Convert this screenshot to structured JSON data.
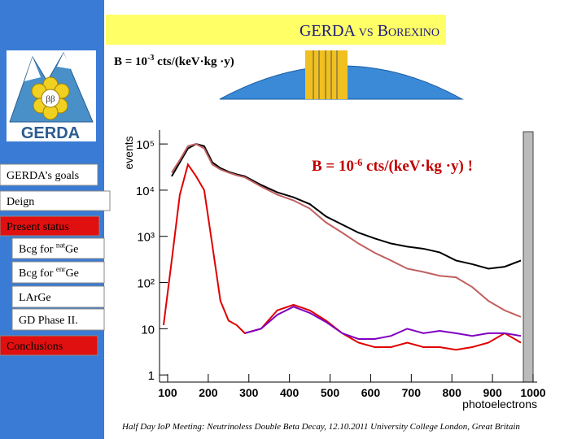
{
  "header": {
    "title": "GERDA vs Borexino"
  },
  "logo": {
    "symbol": "ββ",
    "text": "GERDA"
  },
  "sidebar": {
    "items": [
      {
        "label": "GERDA’s goals"
      },
      {
        "label": "Deign"
      },
      {
        "label": "Present status"
      },
      {
        "label": "Bcg for ",
        "sup": "nat",
        "label_end": "Ge"
      },
      {
        "label": "Bcg for ",
        "sup": "enr",
        "label_end": "Ge"
      },
      {
        "label": "LArGe"
      },
      {
        "label": "GD Phase II."
      },
      {
        "label": "Conclusions"
      }
    ]
  },
  "top_note": {
    "label": "B = 10",
    "sup": "-3",
    "label_end": " cts/(keV·kg ·y)"
  },
  "footer": {
    "text": "Half Day IoP Meeting: Neutrinoless Double Beta Decay, 12.10.2011 University College London, Great Britain"
  },
  "chart_data": {
    "type": "line",
    "annotation": {
      "label": "B = 10",
      "sup": "-6",
      "label_end": " cts/(keV·kg ·y) !"
    },
    "x_label": "photoelectrons",
    "y_label": "events",
    "log_y": true,
    "xlim": [
      80,
      1010
    ],
    "ylim": [
      0.7,
      200000
    ],
    "xticks": [
      100,
      200,
      300,
      400,
      500,
      600,
      700,
      800,
      900,
      1000
    ],
    "yticks": [
      1,
      10,
      {
        "value": 100,
        "label": "10²"
      },
      {
        "value": 1000,
        "label": "10³"
      },
      {
        "value": 10000,
        "label": "10⁴"
      },
      {
        "value": 100000,
        "label": "10⁵"
      }
    ],
    "x": [
      90,
      110,
      130,
      150,
      170,
      190,
      210,
      230,
      250,
      270,
      290,
      330,
      370,
      410,
      450,
      490,
      530,
      570,
      610,
      650,
      690,
      730,
      770,
      810,
      850,
      890,
      930,
      970,
      1000
    ],
    "series": [
      {
        "color": "#000000",
        "values": [
          null,
          20000,
          40000,
          80000,
          100000,
          90000,
          40000,
          30000,
          25000,
          22000,
          20000,
          13000,
          9000,
          7000,
          5000,
          2700,
          1800,
          1200,
          900,
          700,
          600,
          540,
          450,
          300,
          250,
          200,
          220,
          300,
          null
        ]
      },
      {
        "color": "#c06060",
        "values": [
          null,
          24000,
          45000,
          90000,
          100000,
          80000,
          36000,
          28000,
          24000,
          21000,
          19000,
          12000,
          8000,
          6000,
          4000,
          2000,
          1200,
          700,
          440,
          300,
          200,
          170,
          140,
          130,
          80,
          40,
          25,
          18,
          null
        ]
      },
      {
        "color": "#e00000",
        "values": [
          12,
          300,
          8000,
          36000,
          20000,
          10000,
          650,
          40,
          15,
          12,
          8,
          10,
          25,
          33,
          25,
          15,
          8,
          5,
          4,
          4,
          5,
          4,
          4,
          3.5,
          4,
          5,
          8,
          5,
          null
        ]
      },
      {
        "color": "#8000c0",
        "values": [
          null,
          null,
          null,
          null,
          null,
          null,
          null,
          null,
          null,
          null,
          8,
          10,
          20,
          30,
          22,
          14,
          8,
          6,
          6,
          7,
          10,
          8,
          9,
          8,
          7,
          8,
          8,
          7,
          null
        ]
      }
    ]
  }
}
